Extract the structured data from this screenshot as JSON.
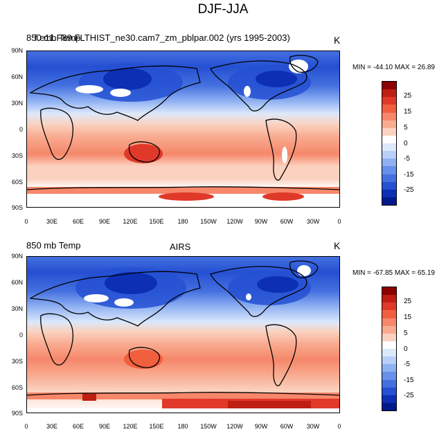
{
  "main_title": "DJF-JJA",
  "panels": [
    {
      "title_left_overlap_a": "850 mb Temp",
      "title_left_overlap_b": "f.e11.F89.FLTHIST_ne30.cam7_zm_pblpar.002 (yrs 1995-2003)",
      "title_center": "",
      "units": "K",
      "stats": "MIN = -44.10 MAX =  26.89"
    },
    {
      "title_left": "850 mb Temp",
      "title_center": "AIRS",
      "units": "K",
      "stats": "MIN = -67.85 MAX =  65.19"
    }
  ],
  "lat_ticks": [
    "90N",
    "60N",
    "30N",
    "0",
    "30S",
    "60S",
    "90S"
  ],
  "lon_ticks": [
    "0",
    "30E",
    "60E",
    "90E",
    "120E",
    "150E",
    "180",
    "150W",
    "120W",
    "90W",
    "60W",
    "30W",
    "0"
  ],
  "colorbar_labels": [
    "25",
    "15",
    "5",
    "0",
    "-5",
    "-15",
    "-25"
  ],
  "colorbar_colors": [
    "#8b0000",
    "#bf1e13",
    "#e0392a",
    "#f15f3f",
    "#f6876a",
    "#f8ab90",
    "#fbd2bf",
    "#ffffff",
    "#dce8fb",
    "#b8d0f8",
    "#8fb1f2",
    "#6690ea",
    "#4470e0",
    "#2450d2",
    "#0c2fb4",
    "#001a8a"
  ]
}
